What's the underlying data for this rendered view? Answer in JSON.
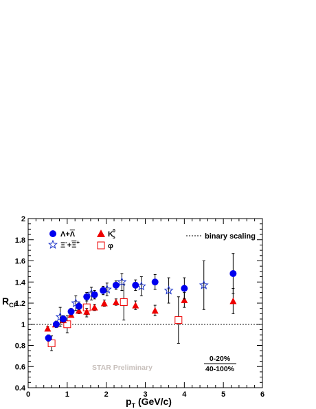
{
  "chart_data": {
    "type": "scatter",
    "title": "",
    "xlabel": "p_T (GeV/c)",
    "ylabel": "R_CP",
    "xlim": [
      0,
      6
    ],
    "ylim": [
      0.4,
      2.0
    ],
    "x_ticks": [
      "0",
      "1",
      "2",
      "3",
      "4",
      "5",
      "6"
    ],
    "y_ticks": [
      "0.4",
      "0.6",
      "0.8",
      "1",
      "1.2",
      "1.4",
      "1.6",
      "1.8",
      "2"
    ],
    "grid": false,
    "legend_placement": "top-left",
    "reference_line": {
      "y": 1.0,
      "label": "binary scaling",
      "style": "dotted"
    },
    "watermark": "STAR Preliminary",
    "centrality": {
      "numerator": "0-20%",
      "denominator": "40-100%"
    },
    "series": [
      {
        "name": "Λ+Λ̄",
        "marker": "filled-circle",
        "color": "#0000ee",
        "points": [
          {
            "x": 0.52,
            "y": 0.87,
            "err": 0.03
          },
          {
            "x": 0.72,
            "y": 1.0,
            "err": 0.03
          },
          {
            "x": 0.9,
            "y": 1.05,
            "err": 0.03
          },
          {
            "x": 1.1,
            "y": 1.12,
            "err": 0.03
          },
          {
            "x": 1.3,
            "y": 1.17,
            "err": 0.03
          },
          {
            "x": 1.5,
            "y": 1.26,
            "err": 0.04
          },
          {
            "x": 1.7,
            "y": 1.28,
            "err": 0.04
          },
          {
            "x": 1.92,
            "y": 1.32,
            "err": 0.04
          },
          {
            "x": 2.25,
            "y": 1.37,
            "err": 0.04
          },
          {
            "x": 2.75,
            "y": 1.37,
            "err": 0.05
          },
          {
            "x": 3.25,
            "y": 1.4,
            "err": 0.07
          },
          {
            "x": 4.0,
            "y": 1.34,
            "err": 0.1
          },
          {
            "x": 5.25,
            "y": 1.48,
            "err": 0.19
          }
        ]
      },
      {
        "name": "Ξ⁻+Ξ̄⁺",
        "marker": "open-star",
        "color": "#1830c8",
        "points": [
          {
            "x": 0.82,
            "y": 1.07,
            "err": 0.09
          },
          {
            "x": 1.22,
            "y": 1.2,
            "err": 0.07
          },
          {
            "x": 1.62,
            "y": 1.29,
            "err": 0.06
          },
          {
            "x": 2.02,
            "y": 1.33,
            "err": 0.06
          },
          {
            "x": 2.4,
            "y": 1.4,
            "err": 0.08
          },
          {
            "x": 2.9,
            "y": 1.36,
            "err": 0.09
          },
          {
            "x": 3.6,
            "y": 1.32,
            "err": 0.12
          },
          {
            "x": 4.5,
            "y": 1.37,
            "err": 0.23
          }
        ]
      },
      {
        "name": "K⁰s",
        "marker": "filled-triangle",
        "color": "#ee0000",
        "points": [
          {
            "x": 0.5,
            "y": 0.96,
            "err": 0.02
          },
          {
            "x": 0.7,
            "y": 1.0,
            "err": 0.02
          },
          {
            "x": 0.9,
            "y": 1.04,
            "err": 0.02
          },
          {
            "x": 1.1,
            "y": 1.09,
            "err": 0.02
          },
          {
            "x": 1.3,
            "y": 1.13,
            "err": 0.03
          },
          {
            "x": 1.5,
            "y": 1.12,
            "err": 0.03
          },
          {
            "x": 1.7,
            "y": 1.16,
            "err": 0.03
          },
          {
            "x": 1.95,
            "y": 1.2,
            "err": 0.03
          },
          {
            "x": 2.25,
            "y": 1.21,
            "err": 0.03
          },
          {
            "x": 2.75,
            "y": 1.18,
            "err": 0.04
          },
          {
            "x": 3.25,
            "y": 1.13,
            "err": 0.05
          },
          {
            "x": 4.0,
            "y": 1.23,
            "err": 0.07
          },
          {
            "x": 5.25,
            "y": 1.22,
            "err": 0.12
          }
        ]
      },
      {
        "name": "φ",
        "marker": "open-square",
        "color": "#ee0000",
        "points": [
          {
            "x": 0.6,
            "y": 0.82,
            "err": 0.07
          },
          {
            "x": 1.0,
            "y": 1.0,
            "err": 0.08
          },
          {
            "x": 1.5,
            "y": 1.16,
            "err": 0.09
          },
          {
            "x": 2.45,
            "y": 1.21,
            "err": 0.17
          },
          {
            "x": 3.85,
            "y": 1.04,
            "err": 0.22
          }
        ]
      }
    ]
  }
}
